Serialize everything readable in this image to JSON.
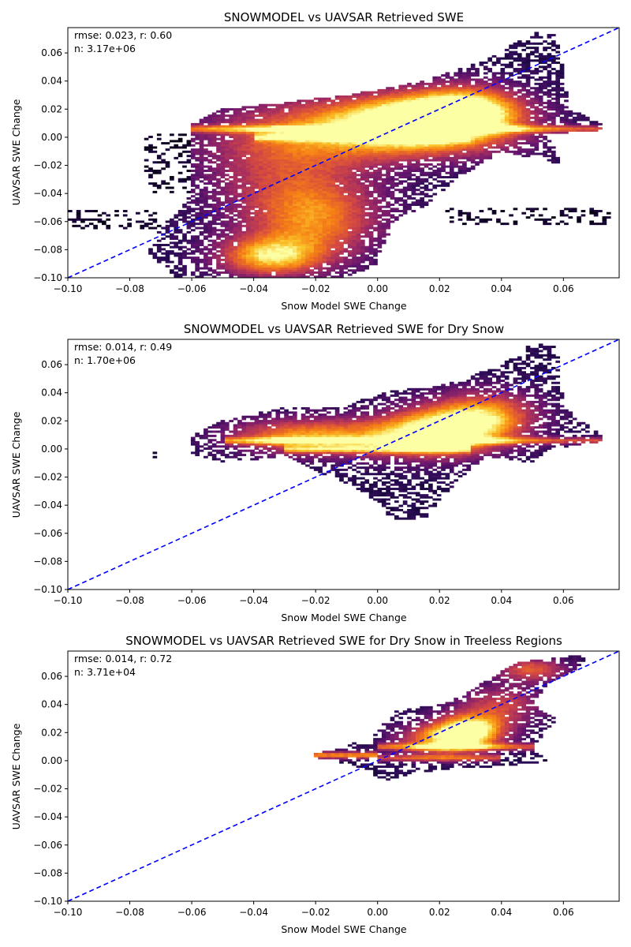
{
  "figure": {
    "background": "#ffffff"
  },
  "chart_data": [
    {
      "type": "heatmap",
      "title": "SNOWMODEL vs UAVSAR Retrieved SWE",
      "xlabel": "Snow Model SWE Change",
      "ylabel": "UAVSAR SWE Change",
      "xlim": [
        -0.1,
        0.078
      ],
      "ylim": [
        -0.1,
        0.078
      ],
      "xticks": [
        "−0.10",
        "−0.08",
        "−0.06",
        "−0.04",
        "−0.02",
        "0.00",
        "0.02",
        "0.04",
        "0.06"
      ],
      "yticks": [
        "−0.10",
        "−0.08",
        "−0.06",
        "−0.04",
        "−0.02",
        "0.00",
        "0.02",
        "0.04",
        "0.06"
      ],
      "tick_values": [
        -0.1,
        -0.08,
        -0.06,
        -0.04,
        -0.02,
        0.0,
        0.02,
        0.04,
        0.06
      ],
      "stats": {
        "line1": "rmse: 0.023, r: 0.60",
        "line2": "n: 3.17e+06"
      },
      "reference_line": {
        "label": "1:1",
        "color": "#0000ff",
        "style": "dashed"
      },
      "colormap": "inferno",
      "density_blobs": [
        {
          "x": 0.015,
          "y": 0.012,
          "sx": 0.018,
          "sy": 0.014,
          "w": 1.0
        },
        {
          "x": 0.03,
          "y": 0.02,
          "sx": 0.012,
          "sy": 0.012,
          "w": 0.7
        },
        {
          "x": -0.035,
          "y": -0.085,
          "sx": 0.012,
          "sy": 0.01,
          "w": 0.8
        },
        {
          "x": -0.02,
          "y": -0.06,
          "sx": 0.015,
          "sy": 0.02,
          "w": 0.6
        },
        {
          "x": -0.03,
          "y": -0.02,
          "sx": 0.02,
          "sy": 0.03,
          "w": 0.45
        },
        {
          "x": 0.0,
          "y": 0.005,
          "sx": 0.03,
          "sy": 0.015,
          "w": 0.6
        }
      ],
      "density_bands": [
        {
          "y": 0.006,
          "x0": -0.06,
          "x1": 0.072,
          "w": 0.55
        },
        {
          "y": 0.0,
          "x0": -0.04,
          "x1": 0.03,
          "w": 0.5
        }
      ],
      "support_polygon": [
        [
          -0.065,
          -0.1
        ],
        [
          -0.075,
          -0.08
        ],
        [
          -0.068,
          -0.06
        ],
        [
          -0.06,
          -0.04
        ],
        [
          -0.06,
          0.01
        ],
        [
          -0.05,
          0.02
        ],
        [
          -0.03,
          0.025
        ],
        [
          -0.01,
          0.03
        ],
        [
          0.015,
          0.04
        ],
        [
          0.035,
          0.055
        ],
        [
          0.05,
          0.075
        ],
        [
          0.058,
          0.073
        ],
        [
          0.062,
          0.02
        ],
        [
          0.072,
          0.01
        ],
        [
          0.072,
          0.005
        ],
        [
          0.055,
          0.002
        ],
        [
          0.06,
          -0.02
        ],
        [
          0.04,
          -0.01
        ],
        [
          0.025,
          -0.03
        ],
        [
          0.015,
          -0.05
        ],
        [
          0.005,
          -0.06
        ],
        [
          0.0,
          -0.09
        ],
        [
          -0.01,
          -0.1
        ]
      ],
      "sparse_tails": [
        {
          "x0": 0.02,
          "x1": 0.075,
          "y0": -0.062,
          "y1": -0.05
        },
        {
          "x0": -0.1,
          "x1": -0.07,
          "y0": -0.065,
          "y1": -0.052
        },
        {
          "x0": -0.075,
          "x1": -0.06,
          "y0": -0.04,
          "y1": 0.002
        }
      ]
    },
    {
      "type": "heatmap",
      "title": "SNOWMODEL vs UAVSAR Retrieved SWE for Dry Snow",
      "xlabel": "Snow Model SWE Change",
      "ylabel": "UAVSAR SWE Change",
      "xlim": [
        -0.1,
        0.078
      ],
      "ylim": [
        -0.1,
        0.078
      ],
      "xticks": [
        "−0.10",
        "−0.08",
        "−0.06",
        "−0.04",
        "−0.02",
        "0.00",
        "0.02",
        "0.04",
        "0.06"
      ],
      "yticks": [
        "−0.10",
        "−0.08",
        "−0.06",
        "−0.04",
        "−0.02",
        "0.00",
        "0.02",
        "0.04",
        "0.06"
      ],
      "tick_values": [
        -0.1,
        -0.08,
        -0.06,
        -0.04,
        -0.02,
        0.0,
        0.02,
        0.04,
        0.06
      ],
      "stats": {
        "line1": "rmse: 0.014, r: 0.49",
        "line2": "n: 1.70e+06"
      },
      "reference_line": {
        "label": "1:1",
        "color": "#0000ff",
        "style": "dashed"
      },
      "colormap": "inferno",
      "density_blobs": [
        {
          "x": 0.02,
          "y": 0.012,
          "sx": 0.014,
          "sy": 0.012,
          "w": 1.0
        },
        {
          "x": 0.035,
          "y": 0.025,
          "sx": 0.012,
          "sy": 0.012,
          "w": 0.7
        },
        {
          "x": -0.01,
          "y": 0.008,
          "sx": 0.02,
          "sy": 0.01,
          "w": 0.55
        },
        {
          "x": -0.03,
          "y": 0.01,
          "sx": 0.015,
          "sy": 0.008,
          "w": 0.4
        }
      ],
      "density_bands": [
        {
          "y": 0.006,
          "x0": -0.05,
          "x1": 0.072,
          "w": 0.55
        },
        {
          "y": 0.0,
          "x0": -0.03,
          "x1": 0.03,
          "w": 0.5
        }
      ],
      "support_polygon": [
        [
          -0.06,
          0.01
        ],
        [
          -0.05,
          0.02
        ],
        [
          -0.03,
          0.03
        ],
        [
          -0.01,
          0.03
        ],
        [
          0.0,
          0.04
        ],
        [
          0.02,
          0.045
        ],
        [
          0.04,
          0.06
        ],
        [
          0.05,
          0.075
        ],
        [
          0.058,
          0.073
        ],
        [
          0.06,
          0.03
        ],
        [
          0.072,
          0.01
        ],
        [
          0.072,
          0.005
        ],
        [
          0.055,
          0.0
        ],
        [
          0.05,
          -0.01
        ],
        [
          0.035,
          -0.005
        ],
        [
          0.025,
          -0.025
        ],
        [
          0.015,
          -0.05
        ],
        [
          0.005,
          -0.05
        ],
        [
          -0.005,
          -0.03
        ],
        [
          -0.015,
          -0.02
        ],
        [
          -0.03,
          -0.005
        ],
        [
          -0.05,
          -0.01
        ],
        [
          -0.06,
          -0.003
        ]
      ],
      "sparse_tails": [
        {
          "x0": -0.075,
          "x1": -0.07,
          "y0": -0.006,
          "y1": -0.002
        }
      ]
    },
    {
      "type": "heatmap",
      "title": "SNOWMODEL vs UAVSAR Retrieved SWE for Dry Snow in Treeless Regions",
      "xlabel": "Snow Model SWE Change",
      "ylabel": "UAVSAR SWE Change",
      "xlim": [
        -0.1,
        0.078
      ],
      "ylim": [
        -0.1,
        0.078
      ],
      "xticks": [
        "−0.10",
        "−0.08",
        "−0.06",
        "−0.04",
        "−0.02",
        "0.00",
        "0.02",
        "0.04",
        "0.06"
      ],
      "yticks": [
        "−0.10",
        "−0.08",
        "−0.06",
        "−0.04",
        "−0.02",
        "0.00",
        "0.02",
        "0.04",
        "0.06"
      ],
      "tick_values": [
        -0.1,
        -0.08,
        -0.06,
        -0.04,
        -0.02,
        0.0,
        0.02,
        0.04,
        0.06
      ],
      "stats": {
        "line1": "rmse: 0.014, r: 0.72",
        "line2": "n: 3.71e+04"
      },
      "reference_line": {
        "label": "1:1",
        "color": "#0000ff",
        "style": "dashed"
      },
      "colormap": "inferno",
      "density_blobs": [
        {
          "x": 0.03,
          "y": 0.022,
          "sx": 0.008,
          "sy": 0.008,
          "w": 1.0
        },
        {
          "x": 0.02,
          "y": 0.015,
          "sx": 0.01,
          "sy": 0.008,
          "w": 0.7
        },
        {
          "x": 0.05,
          "y": 0.065,
          "sx": 0.008,
          "sy": 0.006,
          "w": 0.6
        },
        {
          "x": 0.04,
          "y": 0.04,
          "sx": 0.01,
          "sy": 0.01,
          "w": 0.5
        }
      ],
      "density_bands": [
        {
          "y": 0.004,
          "x0": -0.02,
          "x1": 0.0,
          "w": 0.75
        },
        {
          "y": 0.01,
          "x0": 0.0,
          "x1": 0.05,
          "w": 0.55
        },
        {
          "y": 0.002,
          "x0": 0.0,
          "x1": 0.04,
          "w": 0.5
        }
      ],
      "support_polygon": [
        [
          -0.02,
          0.005
        ],
        [
          -0.01,
          0.01
        ],
        [
          0.0,
          0.02
        ],
        [
          0.005,
          0.035
        ],
        [
          0.02,
          0.04
        ],
        [
          0.03,
          0.05
        ],
        [
          0.045,
          0.07
        ],
        [
          0.065,
          0.075
        ],
        [
          0.068,
          0.07
        ],
        [
          0.055,
          0.055
        ],
        [
          0.05,
          0.04
        ],
        [
          0.058,
          0.03
        ],
        [
          0.05,
          0.01
        ],
        [
          0.055,
          0.0
        ],
        [
          0.04,
          -0.005
        ],
        [
          0.025,
          -0.005
        ],
        [
          0.01,
          -0.01
        ],
        [
          0.0,
          -0.015
        ],
        [
          -0.005,
          -0.005
        ],
        [
          -0.02,
          0.002
        ]
      ],
      "sparse_tails": []
    }
  ]
}
